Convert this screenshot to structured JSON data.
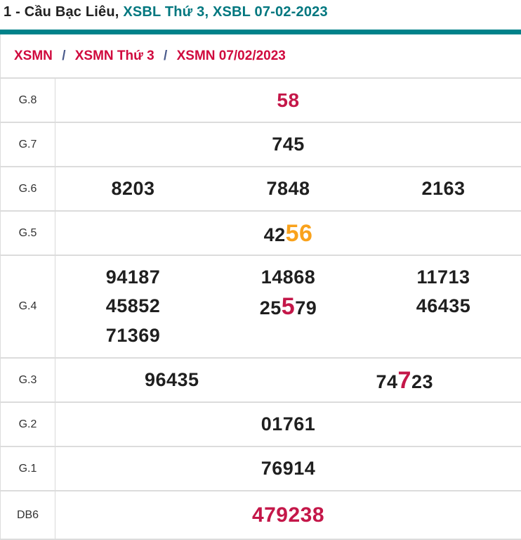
{
  "title": {
    "prefix": "1 - Cầu Bạc Liêu, ",
    "highlight": "XSBL Thứ 3, XSBL 07-02-2023"
  },
  "breadcrumb": {
    "separator": "/",
    "items": [
      "XSMN",
      "XSMN Thứ 3",
      "XSMN 07/02/2023"
    ]
  },
  "colors": {
    "teal_bar": "#00828a",
    "teal_title": "#00777f",
    "breadcrumb_red": "#d00a3e",
    "digit_red": "#c41749",
    "digit_orange": "#f9a21c",
    "digit_dark": "#1f1f1f",
    "border_gray": "#dcdcdc",
    "separator_slash": "#4a5b8c"
  },
  "table": {
    "g8": {
      "label": "G.8",
      "value": "58"
    },
    "g7": {
      "label": "G.7",
      "value": "745"
    },
    "g6": {
      "label": "G.6",
      "values": [
        "8203",
        "7848",
        "2163"
      ]
    },
    "g5": {
      "label": "G.5",
      "pre": "42",
      "highlight": "56"
    },
    "g4": {
      "label": "G.4",
      "r1": [
        "94187",
        "14868",
        "11713"
      ],
      "r2c1": "45852",
      "r2c2_pre": "25",
      "r2c2_hl": "5",
      "r2c2_post": "79",
      "r2c3": "46435",
      "r3c1": "71369"
    },
    "g3": {
      "label": "G.3",
      "v1": "96435",
      "v2_pre": "74",
      "v2_hl": "7",
      "v2_post": "23"
    },
    "g2": {
      "label": "G.2",
      "value": "01761"
    },
    "g1": {
      "label": "G.1",
      "value": "76914"
    },
    "db": {
      "label": "DB6",
      "value": "479238"
    }
  }
}
